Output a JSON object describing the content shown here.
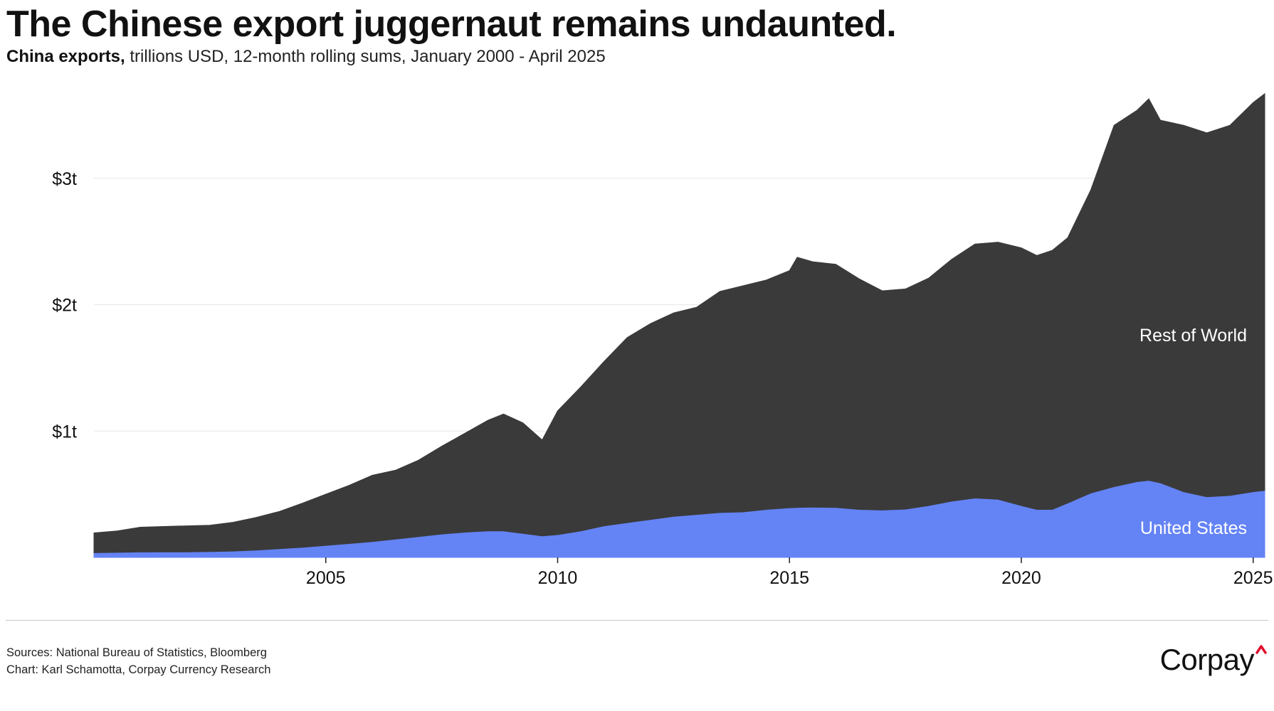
{
  "title": "The Chinese export juggernaut remains undaunted.",
  "subtitle": {
    "lead": "China exports,",
    "rest": " trillions USD, 12-month rolling sums, January 2000 - April 2025"
  },
  "footer": {
    "sources": "Sources: National Bureau of Statistics, Bloomberg",
    "credit": "Chart: Karl Schamotta, Corpay Currency Research"
  },
  "logo": {
    "text": "Corpay",
    "accent_color": "#e0102f"
  },
  "colors": {
    "rest_of_world": "#3a3a3a",
    "united_states": "#6483f5",
    "gridline": "#e6e6e6",
    "axis_text": "#111111",
    "label_text": "#ffffff"
  },
  "chart_data": {
    "type": "area",
    "stacked": true,
    "title": "The Chinese export juggernaut remains undaunted.",
    "subtitle": "China exports, trillions USD, 12-month rolling sums, January 2000 - April 2025",
    "xlim": [
      "2000-01",
      "2025-04"
    ],
    "ylim": [
      0,
      3.68
    ],
    "yticks": [
      1,
      2,
      3
    ],
    "ytick_labels": [
      "$1t",
      "$2t",
      "$3t"
    ],
    "xticks": [
      2005,
      2010,
      2015,
      2020,
      2025
    ],
    "xtick_labels": [
      "2005",
      "2010",
      "2015",
      "2020",
      "2025"
    ],
    "grid": true,
    "x": [
      "2000-01",
      "2000-07",
      "2001-01",
      "2001-07",
      "2002-01",
      "2002-07",
      "2003-01",
      "2003-07",
      "2004-01",
      "2004-07",
      "2005-01",
      "2005-07",
      "2006-01",
      "2006-07",
      "2007-01",
      "2007-07",
      "2008-01",
      "2008-07",
      "2008-11",
      "2009-04",
      "2009-09",
      "2010-01",
      "2010-07",
      "2011-01",
      "2011-07",
      "2012-01",
      "2012-07",
      "2013-01",
      "2013-07",
      "2014-01",
      "2014-07",
      "2015-01",
      "2015-03",
      "2015-07",
      "2016-01",
      "2016-07",
      "2017-01",
      "2017-07",
      "2018-01",
      "2018-07",
      "2019-01",
      "2019-07",
      "2020-01",
      "2020-05",
      "2020-09",
      "2021-01",
      "2021-07",
      "2022-01",
      "2022-07",
      "2022-10",
      "2023-01",
      "2023-07",
      "2024-01",
      "2024-07",
      "2025-01",
      "2025-04"
    ],
    "series": [
      {
        "name": "United States",
        "label": "United States",
        "values": [
          0.037,
          0.04,
          0.043,
          0.044,
          0.044,
          0.046,
          0.05,
          0.058,
          0.069,
          0.08,
          0.095,
          0.11,
          0.125,
          0.145,
          0.165,
          0.185,
          0.2,
          0.21,
          0.21,
          0.19,
          0.17,
          0.18,
          0.21,
          0.25,
          0.275,
          0.3,
          0.325,
          0.34,
          0.355,
          0.36,
          0.38,
          0.393,
          0.395,
          0.398,
          0.395,
          0.38,
          0.375,
          0.382,
          0.41,
          0.445,
          0.47,
          0.46,
          0.41,
          0.38,
          0.38,
          0.43,
          0.51,
          0.56,
          0.6,
          0.61,
          0.59,
          0.52,
          0.48,
          0.49,
          0.52,
          0.53
        ]
      },
      {
        "name": "Rest of World",
        "label": "Rest of World",
        "values": [
          0.157,
          0.17,
          0.196,
          0.201,
          0.206,
          0.209,
          0.228,
          0.259,
          0.295,
          0.35,
          0.405,
          0.46,
          0.525,
          0.545,
          0.605,
          0.695,
          0.783,
          0.876,
          0.925,
          0.875,
          0.76,
          0.98,
          1.14,
          1.3,
          1.465,
          1.55,
          1.61,
          1.64,
          1.75,
          1.79,
          1.815,
          1.877,
          1.98,
          1.942,
          1.925,
          1.825,
          1.735,
          1.743,
          1.8,
          1.915,
          2.01,
          2.035,
          2.04,
          2.01,
          2.05,
          2.1,
          2.4,
          2.86,
          2.94,
          3.02,
          2.87,
          2.9,
          2.88,
          2.93,
          3.08,
          3.14
        ]
      }
    ],
    "annotations": [
      "Rest of World",
      "United States"
    ]
  }
}
